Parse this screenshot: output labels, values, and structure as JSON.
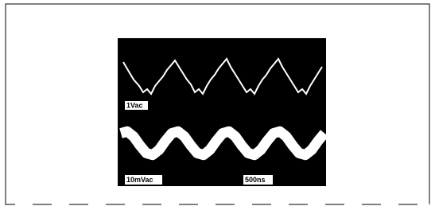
{
  "figure": {
    "channel_1_label": "1Vac",
    "channel_2_label": "10mVac",
    "timebase_label": "500ns"
  }
}
